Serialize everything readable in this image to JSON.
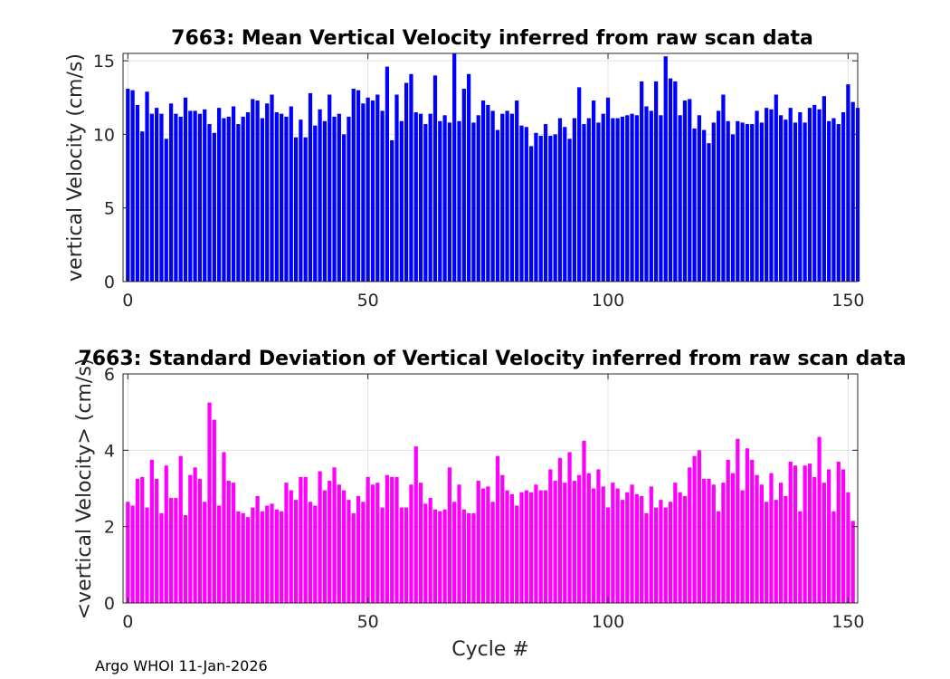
{
  "chart_data": [
    {
      "type": "bar",
      "title": "7663: Mean Vertical Velocity inferred from raw scan data",
      "xlabel": "",
      "ylabel": "vertical Velocity (cm/s)",
      "xlim": [
        -1,
        152
      ],
      "ylim": [
        0,
        15.5
      ],
      "xticks": [
        0,
        50,
        100,
        150
      ],
      "yticks": [
        0,
        5,
        10,
        15
      ],
      "x_start": 0,
      "color": "#0000ff",
      "grid": true,
      "values": [
        13.1,
        13.0,
        12.0,
        10.2,
        12.9,
        11.4,
        11.8,
        11.4,
        9.7,
        12.1,
        11.4,
        11.2,
        12.5,
        11.6,
        11.6,
        11.4,
        11.7,
        10.7,
        10.1,
        11.8,
        11.1,
        11.2,
        11.9,
        10.7,
        11.2,
        11.5,
        12.4,
        12.3,
        11.1,
        12.1,
        12.7,
        11.5,
        11.4,
        11.2,
        11.9,
        9.8,
        11.0,
        9.8,
        12.8,
        10.6,
        11.7,
        10.9,
        12.7,
        11.2,
        11.4,
        10.0,
        11.2,
        13.1,
        13.0,
        12.1,
        12.5,
        12.3,
        12.7,
        11.6,
        14.6,
        9.6,
        12.7,
        10.9,
        13.5,
        14.1,
        11.5,
        11.4,
        10.7,
        11.4,
        14.0,
        10.9,
        11.3,
        10.8,
        15.5,
        10.9,
        13.1,
        14.1,
        10.8,
        11.3,
        12.3,
        12.0,
        11.6,
        10.3,
        11.4,
        11.6,
        11.4,
        12.3,
        10.6,
        10.5,
        9.2,
        10.1,
        9.9,
        10.7,
        9.9,
        10.0,
        11.1,
        10.5,
        9.7,
        11.1,
        13.2,
        10.7,
        11.1,
        12.3,
        10.8,
        11.4,
        12.5,
        11.1,
        11.1,
        11.2,
        11.3,
        11.4,
        11.3,
        13.6,
        11.9,
        11.6,
        13.6,
        11.3,
        15.3,
        13.8,
        13.6,
        11.3,
        12.3,
        12.4,
        10.4,
        11.3,
        10.3,
        9.4,
        10.8,
        11.6,
        12.7,
        10.9,
        10.0,
        10.9,
        10.8,
        10.7,
        10.7,
        11.6,
        10.8,
        11.8,
        11.7,
        12.7,
        11.3,
        11.0,
        11.8,
        10.8,
        11.5,
        10.8,
        11.8,
        12.0,
        11.7,
        12.6,
        10.9,
        11.1,
        10.7,
        11.5,
        13.4,
        12.2,
        11.8
      ]
    },
    {
      "type": "bar",
      "title": "7663: Standard Deviation of Vertical Velocity inferred from raw scan data",
      "xlabel": "Cycle #",
      "ylabel": "<vertical Velocity> (cm/s)",
      "xlim": [
        -1,
        152
      ],
      "ylim": [
        0,
        6
      ],
      "xticks": [
        0,
        50,
        100,
        150
      ],
      "yticks": [
        0,
        2,
        4,
        6
      ],
      "x_start": 0,
      "color": "#ff00ff",
      "grid": true,
      "values": [
        2.65,
        2.55,
        3.25,
        3.3,
        2.5,
        3.75,
        3.25,
        2.35,
        3.6,
        2.75,
        2.75,
        3.85,
        2.3,
        3.35,
        3.55,
        3.25,
        2.65,
        5.25,
        4.8,
        2.55,
        3.95,
        3.2,
        3.15,
        2.4,
        2.35,
        2.25,
        2.5,
        2.8,
        2.4,
        2.55,
        2.6,
        2.45,
        2.4,
        3.15,
        2.95,
        2.7,
        3.3,
        3.3,
        2.65,
        2.55,
        3.45,
        2.95,
        3.2,
        3.55,
        3.1,
        2.95,
        2.7,
        2.35,
        2.8,
        2.65,
        3.3,
        3.1,
        3.15,
        2.5,
        3.35,
        3.3,
        3.3,
        2.5,
        2.5,
        3.1,
        4.1,
        3.15,
        2.6,
        2.75,
        2.45,
        2.4,
        2.45,
        3.55,
        2.65,
        3.1,
        2.45,
        2.35,
        2.35,
        3.2,
        3.0,
        3.05,
        2.65,
        3.85,
        3.35,
        2.95,
        2.85,
        2.55,
        2.9,
        2.95,
        2.9,
        3.1,
        2.95,
        2.95,
        3.5,
        3.2,
        3.8,
        3.15,
        3.95,
        3.2,
        3.35,
        4.25,
        3.4,
        3.0,
        3.5,
        3.05,
        2.5,
        3.15,
        3.0,
        2.7,
        2.9,
        3.1,
        2.85,
        2.8,
        2.35,
        3.05,
        2.5,
        2.7,
        2.5,
        2.65,
        3.15,
        2.9,
        2.8,
        3.55,
        3.85,
        4.0,
        3.25,
        3.25,
        3.1,
        2.4,
        3.15,
        3.75,
        3.4,
        4.3,
        2.95,
        4.05,
        3.75,
        3.35,
        3.1,
        2.65,
        3.4,
        2.7,
        3.15,
        2.8,
        3.7,
        3.6,
        2.4,
        3.6,
        3.65,
        3.3,
        4.35,
        3.15,
        3.5,
        2.4,
        3.7,
        3.5,
        2.9,
        2.15
      ]
    }
  ],
  "footer": "Argo WHOI 11-Jan-2026"
}
